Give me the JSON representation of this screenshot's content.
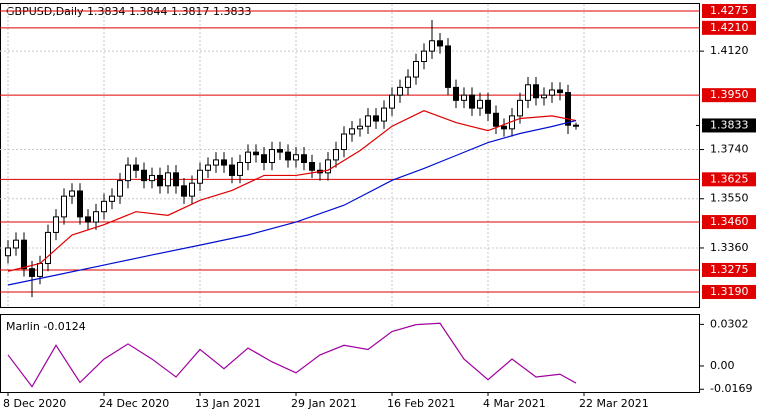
{
  "chart_data": [
    {
      "type": "candlestick",
      "title": "GBPUSD,Daily  1.3834 1.3844 1.3817 1.3833",
      "xlim": [
        -1,
        86.5
      ],
      "ylim": [
        1.3132,
        1.4302
      ],
      "grid": true,
      "xticks": [
        {
          "value": 0,
          "label": "8 Dec 2020"
        },
        {
          "value": 12,
          "label": "24 Dec 2020"
        },
        {
          "value": 24,
          "label": "13 Jan 2021"
        },
        {
          "value": 36,
          "label": "29 Jan 2021"
        },
        {
          "value": 48,
          "label": "16 Feb 2021"
        },
        {
          "value": 60,
          "label": "4 Mar 2021"
        },
        {
          "value": 72,
          "label": "22 Mar 2021"
        }
      ],
      "yticks": [
        {
          "value": 1.412,
          "label": "1.4120"
        },
        {
          "value": 1.374,
          "label": "1.3740"
        },
        {
          "value": 1.355,
          "label": "1.3550"
        },
        {
          "value": 1.336,
          "label": "1.3360"
        }
      ],
      "levels": [
        {
          "value": 1.4275,
          "label": "1.4275"
        },
        {
          "value": 1.421,
          "label": "1.4210"
        },
        {
          "value": 1.395,
          "label": "1.3950"
        },
        {
          "value": 1.3625,
          "label": "1.3625"
        },
        {
          "value": 1.346,
          "label": "1.3460"
        },
        {
          "value": 1.3275,
          "label": "1.3275"
        },
        {
          "value": 1.319,
          "label": "1.3190"
        }
      ],
      "level_color": "#e00000",
      "price_label": {
        "value": 1.3833,
        "label": "1.3833"
      },
      "open": [
        1.333,
        1.336,
        1.339,
        1.328,
        1.325,
        1.33,
        1.342,
        1.348,
        1.356,
        1.358,
        1.348,
        1.346,
        1.35,
        1.354,
        1.356,
        1.362,
        1.368,
        1.366,
        1.362,
        1.364,
        1.36,
        1.365,
        1.36,
        1.356,
        1.361,
        1.366,
        1.368,
        1.37,
        1.368,
        1.364,
        1.369,
        1.373,
        1.372,
        1.369,
        1.374,
        1.373,
        1.37,
        1.372,
        1.369,
        1.366,
        1.365,
        1.37,
        1.374,
        1.38,
        1.382,
        1.383,
        1.387,
        1.385,
        1.39,
        1.395,
        1.398,
        1.402,
        1.408,
        1.412,
        1.416,
        1.414,
        1.398,
        1.393,
        1.395,
        1.39,
        1.393,
        1.388,
        1.383,
        1.382,
        1.387,
        1.393,
        1.399,
        1.394,
        1.395,
        1.397,
        1.396,
        1.3834
      ],
      "high": [
        1.339,
        1.342,
        1.342,
        1.331,
        1.333,
        1.345,
        1.351,
        1.359,
        1.361,
        1.361,
        1.351,
        1.353,
        1.357,
        1.359,
        1.365,
        1.371,
        1.371,
        1.369,
        1.367,
        1.367,
        1.368,
        1.368,
        1.363,
        1.364,
        1.369,
        1.371,
        1.373,
        1.373,
        1.371,
        1.372,
        1.376,
        1.376,
        1.375,
        1.377,
        1.377,
        1.376,
        1.375,
        1.375,
        1.372,
        1.369,
        1.373,
        1.377,
        1.383,
        1.385,
        1.386,
        1.39,
        1.39,
        1.393,
        1.398,
        1.401,
        1.405,
        1.411,
        1.415,
        1.424,
        1.419,
        1.417,
        1.401,
        1.398,
        1.398,
        1.396,
        1.396,
        1.391,
        1.386,
        1.39,
        1.396,
        1.402,
        1.402,
        1.398,
        1.4,
        1.4,
        1.399,
        1.3844
      ],
      "low": [
        1.33,
        1.333,
        1.325,
        1.317,
        1.322,
        1.327,
        1.339,
        1.345,
        1.353,
        1.345,
        1.343,
        1.343,
        1.347,
        1.351,
        1.353,
        1.359,
        1.363,
        1.359,
        1.359,
        1.357,
        1.357,
        1.357,
        1.353,
        1.353,
        1.358,
        1.363,
        1.365,
        1.365,
        1.361,
        1.361,
        1.366,
        1.369,
        1.366,
        1.366,
        1.37,
        1.367,
        1.367,
        1.366,
        1.363,
        1.362,
        1.362,
        1.367,
        1.371,
        1.377,
        1.379,
        1.38,
        1.382,
        1.382,
        1.387,
        1.392,
        1.395,
        1.399,
        1.405,
        1.409,
        1.411,
        1.395,
        1.39,
        1.39,
        1.387,
        1.387,
        1.385,
        1.38,
        1.379,
        1.379,
        1.384,
        1.39,
        1.391,
        1.391,
        1.392,
        1.393,
        1.38,
        1.3817
      ],
      "close": [
        1.336,
        1.339,
        1.328,
        1.325,
        1.33,
        1.342,
        1.348,
        1.356,
        1.358,
        1.348,
        1.346,
        1.35,
        1.354,
        1.356,
        1.362,
        1.368,
        1.366,
        1.362,
        1.364,
        1.36,
        1.365,
        1.36,
        1.356,
        1.361,
        1.366,
        1.368,
        1.37,
        1.368,
        1.364,
        1.369,
        1.373,
        1.372,
        1.369,
        1.374,
        1.373,
        1.37,
        1.372,
        1.369,
        1.366,
        1.365,
        1.37,
        1.374,
        1.38,
        1.382,
        1.383,
        1.387,
        1.385,
        1.39,
        1.395,
        1.398,
        1.402,
        1.408,
        1.412,
        1.416,
        1.414,
        1.398,
        1.393,
        1.395,
        1.39,
        1.393,
        1.388,
        1.383,
        1.382,
        1.387,
        1.393,
        1.399,
        1.394,
        1.395,
        1.397,
        1.396,
        1.3834,
        1.3833
      ],
      "series": [
        {
          "color": "#e00000",
          "x": [
            0,
            4,
            8,
            12,
            16,
            20,
            24,
            28,
            32,
            36,
            40,
            44,
            48,
            52,
            56,
            60,
            64,
            68,
            71
          ],
          "values": [
            1.327,
            1.33,
            1.341,
            1.345,
            1.35,
            1.3486,
            1.3544,
            1.3582,
            1.364,
            1.364,
            1.366,
            1.3736,
            1.383,
            1.389,
            1.3844,
            1.3813,
            1.386,
            1.387,
            1.3852
          ]
        },
        {
          "color": "#0010d0",
          "x": [
            0,
            6,
            12,
            18,
            24,
            30,
            36,
            42,
            48,
            52,
            56,
            60,
            64,
            68,
            71
          ],
          "values": [
            1.3217,
            1.3255,
            1.3294,
            1.3333,
            1.3371,
            1.341,
            1.346,
            1.3525,
            1.3621,
            1.3667,
            1.3717,
            1.3767,
            1.3802,
            1.3829,
            1.3852
          ]
        }
      ]
    },
    {
      "type": "line",
      "title": "Marlin -0.0124",
      "color": "#a000a0",
      "xlim": [
        -1,
        86.5
      ],
      "ylim": [
        -0.0189,
        0.037
      ],
      "yticks": [
        0.0302,
        {
          "value": 0,
          "label": "0.00"
        },
        -0.0169
      ],
      "x": [
        0,
        3,
        6,
        9,
        12,
        15,
        18,
        21,
        24,
        27,
        30,
        33,
        36,
        39,
        42,
        45,
        48,
        51,
        54,
        57,
        60,
        63,
        66,
        69,
        71
      ],
      "values": [
        0.008,
        -0.015,
        0.015,
        -0.012,
        0.005,
        0.016,
        0.005,
        -0.008,
        0.012,
        -0.002,
        0.013,
        0.003,
        -0.005,
        0.008,
        0.015,
        0.012,
        0.025,
        0.03,
        0.031,
        0.005,
        -0.01,
        0.005,
        -0.008,
        -0.006,
        -0.0124
      ]
    }
  ]
}
